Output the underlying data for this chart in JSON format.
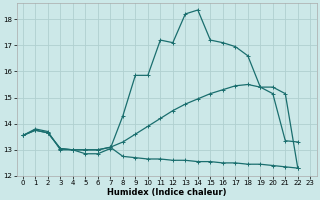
{
  "xlabel": "Humidex (Indice chaleur)",
  "xlim": [
    -0.5,
    23.5
  ],
  "ylim": [
    12,
    18.6
  ],
  "yticks": [
    12,
    13,
    14,
    15,
    16,
    17,
    18
  ],
  "xticks": [
    0,
    1,
    2,
    3,
    4,
    5,
    6,
    7,
    8,
    9,
    10,
    11,
    12,
    13,
    14,
    15,
    16,
    17,
    18,
    19,
    20,
    21,
    22,
    23
  ],
  "bg_color": "#cce8e8",
  "grid_color": "#b0d0d0",
  "line_color": "#1a6e6e",
  "line1_x": [
    0,
    1,
    2,
    3,
    4,
    5,
    6,
    7,
    8,
    9,
    10,
    11,
    12,
    13,
    14,
    15,
    16,
    17,
    18,
    19,
    20,
    21,
    22
  ],
  "line1_y": [
    13.55,
    13.8,
    13.7,
    13.0,
    13.0,
    12.85,
    12.85,
    13.05,
    14.3,
    15.85,
    15.85,
    17.2,
    17.1,
    18.2,
    18.35,
    17.2,
    17.1,
    16.95,
    16.6,
    15.4,
    15.15,
    13.35,
    13.3
  ],
  "line2_x": [
    0,
    1,
    2,
    3,
    4,
    5,
    6,
    7,
    8,
    9,
    10,
    11,
    12,
    13,
    14,
    15,
    16,
    17,
    18,
    19,
    20,
    21,
    22
  ],
  "line2_y": [
    13.55,
    13.75,
    13.65,
    13.05,
    13.0,
    13.0,
    13.0,
    13.1,
    13.3,
    13.6,
    13.9,
    14.2,
    14.5,
    14.75,
    14.95,
    15.15,
    15.3,
    15.45,
    15.5,
    15.4,
    15.4,
    15.15,
    12.3
  ],
  "line3_x": [
    0,
    1,
    2,
    3,
    4,
    5,
    6,
    7,
    8,
    9,
    10,
    11,
    12,
    13,
    14,
    15,
    16,
    17,
    18,
    19,
    20,
    21,
    22
  ],
  "line3_y": [
    13.55,
    13.75,
    13.65,
    13.05,
    13.0,
    13.0,
    13.0,
    13.1,
    12.75,
    12.7,
    12.65,
    12.65,
    12.6,
    12.6,
    12.55,
    12.55,
    12.5,
    12.5,
    12.45,
    12.45,
    12.4,
    12.35,
    12.3
  ],
  "markersize": 2.0,
  "linewidth": 0.9
}
